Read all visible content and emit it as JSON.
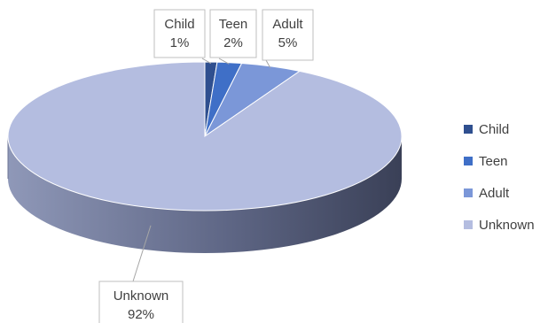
{
  "chart_data": {
    "type": "pie",
    "variant": "3d",
    "title": "",
    "categories": [
      "Child",
      "Teen",
      "Adult",
      "Unknown"
    ],
    "values": [
      1,
      2,
      5,
      92
    ],
    "data_labels": [
      {
        "name": "Child",
        "value": "1%"
      },
      {
        "name": "Teen",
        "value": "2%"
      },
      {
        "name": "Adult",
        "value": "5%"
      },
      {
        "name": "Unknown",
        "value": "92%"
      }
    ],
    "colors": [
      "#2f4f8f",
      "#3f6fc7",
      "#7b97d8",
      "#b4bde0"
    ],
    "side_colors": [
      "#1f3566",
      "#2a4d8e",
      "#5670a8",
      "#5f6786"
    ],
    "legend": {
      "position": "right",
      "items": [
        "Child",
        "Teen",
        "Adult",
        "Unknown"
      ]
    }
  }
}
